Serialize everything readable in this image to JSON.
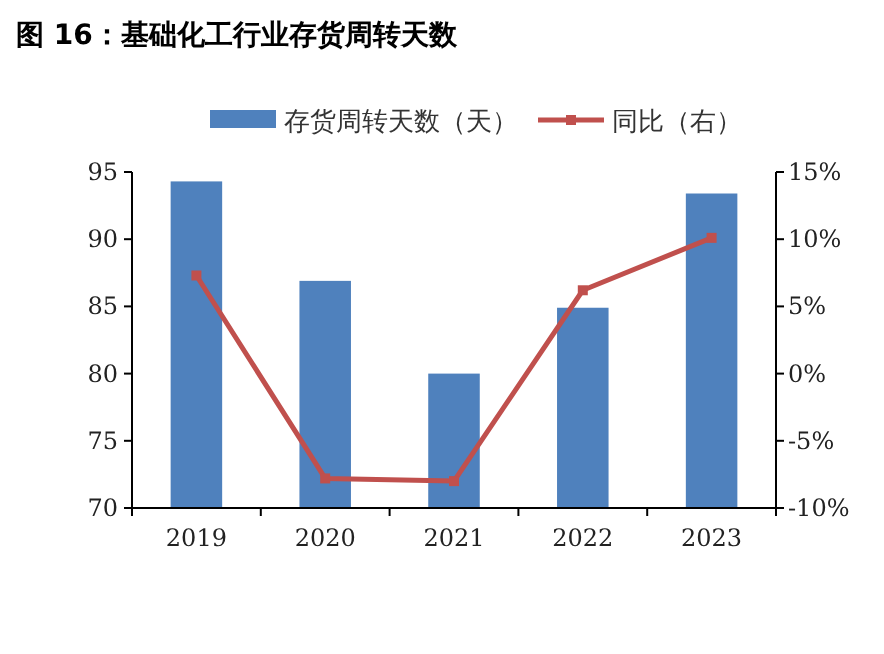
{
  "chart_data": {
    "type": "bar",
    "title": "图 16：基础化工行业存货周转天数",
    "categories": [
      "2019",
      "2020",
      "2021",
      "2022",
      "2023"
    ],
    "series": [
      {
        "name": "存货周转天数（天）",
        "color": "#4f81bd",
        "values": [
          94.3,
          86.9,
          80.0,
          84.9,
          93.4
        ]
      },
      {
        "name": "同比（右）",
        "type": "line",
        "axis": "y2",
        "color": "#c0504d",
        "marker": "square",
        "values": [
          7.3,
          -7.8,
          -8.0,
          6.2,
          10.1
        ]
      }
    ],
    "ylim": [
      70,
      95
    ],
    "yticks": [
      70,
      75,
      80,
      85,
      90,
      95
    ],
    "y2lim": [
      -10,
      15
    ],
    "y2ticks": [
      {
        "value": -10,
        "label": "-10%"
      },
      {
        "value": -5,
        "label": "-5%"
      },
      {
        "value": 0,
        "label": "0%"
      },
      {
        "value": 5,
        "label": "5%"
      },
      {
        "value": 10,
        "label": "10%"
      },
      {
        "value": 15,
        "label": "15%"
      }
    ],
    "legend": "top",
    "grid": false
  }
}
